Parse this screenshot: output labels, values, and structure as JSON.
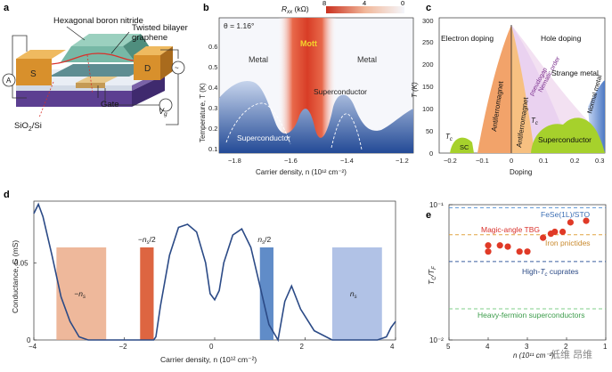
{
  "panels": {
    "a": {
      "letter": "a",
      "labels": {
        "hbn": "Hexagonal boron nitride",
        "tbg": "Twisted bilayer",
        "tbg2": "graphene",
        "source": "S",
        "drain": "D",
        "gate": "Gate",
        "substrate": "SiO",
        "substrate_sub": "2",
        "substrate_tail": "/Si",
        "ammeter": "A",
        "vg": "V",
        "vg_sub": "g"
      }
    },
    "b": {
      "letter": "b",
      "colorbar_label": "R",
      "colorbar_label_sub": "xx",
      "colorbar_unit": " (kΩ)",
      "colorbar_ticks": [
        "8",
        "4",
        "0"
      ],
      "theta": "θ = 1.16°",
      "region_mott": "Mott",
      "region_metal_left": "Metal",
      "region_metal_right": "Metal",
      "region_sc_left": "Superconductor",
      "region_sc_right": "Superconductor",
      "ylabel": "Temperature, T (K)",
      "xlabel": "Carrier density, n (10¹² cm⁻²)",
      "x_ticks": [
        "−1.8",
        "−1.6",
        "−1.4",
        "−1.2"
      ],
      "y_ticks": [
        "0.1",
        "0.2",
        "0.3",
        "0.4",
        "0.5",
        "0.6"
      ]
    },
    "c": {
      "letter": "c",
      "electron_doping": "Electron doping",
      "hole_doping": "Hole doping",
      "strange_metal": "Strange metal",
      "normal_metal": "Normal metal",
      "nematic": "Nematic order",
      "pseudogap": "pseudogap",
      "afm_left": "Antiferromagnet",
      "afm_right": "Antiferromagnet",
      "sc_small": "SC",
      "sc_big": "Superconductor",
      "tc": "T",
      "tc_sub": "c",
      "tc2": "T",
      "tc2_sub": "c",
      "ylabel": "T (K)",
      "xlabel": "Doping",
      "x_ticks": [
        "−0.2",
        "−0.1",
        "0",
        "0.1",
        "0.2",
        "0.3"
      ],
      "y_ticks": [
        "0",
        "50",
        "100",
        "150",
        "200",
        "250",
        "300"
      ]
    },
    "d": {
      "letter": "d",
      "ylabel": "Conductance, G (mS)",
      "xlabel": "Carrier density, n (10¹² cm⁻²)",
      "x_ticks": [
        "−4",
        "−2",
        "0",
        "2",
        "4"
      ],
      "y_ticks": [
        "0",
        "0.05"
      ],
      "band_neg_ns": "−n",
      "band_neg_ns_sub": "s",
      "band_neg_half": "−n",
      "band_neg_half_sub": "s",
      "band_neg_half_tail": "/2",
      "band_pos_half": "n",
      "band_pos_half_sub": "s",
      "band_pos_half_tail": "/2",
      "band_pos_ns": "n",
      "band_pos_ns_sub": "s"
    },
    "e": {
      "letter": "e",
      "ylabel": "T",
      "ylabel_sub1": "C",
      "ylabel_mid": "/T",
      "ylabel_sub2": "F",
      "xlabel": "n (10¹¹ cm⁻²)",
      "x_ticks": [
        "5",
        "4",
        "3",
        "2",
        "1"
      ],
      "y_ticks": [
        "10⁻¹",
        "10⁻²"
      ],
      "line_fese": "FeSe(1L)/STO",
      "line_tbg": "Magic-angle TBG",
      "line_iron": "Iron pnictides",
      "line_cuprate": "High-",
      "line_cuprate_tc": "T",
      "line_cuprate_tail": " cuprates",
      "line_heavy": "Heavy-fermion superconductors",
      "watermark": "低维 昂维"
    }
  },
  "colors": {
    "blue_curve": "#2b4a86",
    "red_points": "#e03a27",
    "orange_band": "#e8a07a",
    "red_band": "#d9542c",
    "blue_band": "#4f7fc2",
    "light_blue_band": "#97aede"
  },
  "chart_data": [
    {
      "type": "line",
      "title": "",
      "xlabel": "Carrier density, n (10¹² cm⁻²)",
      "ylabel": "Conductance, G (mS)",
      "xlim": [
        -4,
        4
      ],
      "ylim": [
        0,
        0.09
      ],
      "x": [
        -4.0,
        -3.9,
        -3.8,
        -3.6,
        -3.4,
        -3.2,
        -3.0,
        -2.8,
        -2.6,
        -2.4,
        -2.2,
        -2.0,
        -1.8,
        -1.6,
        -1.45,
        -1.4,
        -1.35,
        -1.3,
        -1.2,
        -1.0,
        -0.8,
        -0.6,
        -0.4,
        -0.2,
        -0.1,
        0.0,
        0.1,
        0.2,
        0.4,
        0.6,
        0.8,
        1.0,
        1.2,
        1.4,
        1.55,
        1.7,
        1.9,
        2.2,
        2.6,
        3.0,
        3.3,
        3.6,
        3.8,
        3.9,
        4.0
      ],
      "series": [
        {
          "name": "G",
          "values": [
            0.082,
            0.088,
            0.08,
            0.055,
            0.028,
            0.012,
            0.002,
            0.0,
            0.0,
            0.0,
            0.0,
            0.0,
            0.0,
            0.0,
            0.0,
            0.0,
            0.0,
            0.002,
            0.022,
            0.055,
            0.073,
            0.075,
            0.07,
            0.05,
            0.03,
            0.026,
            0.032,
            0.05,
            0.068,
            0.072,
            0.06,
            0.035,
            0.01,
            0.0,
            0.025,
            0.035,
            0.02,
            0.006,
            0.0,
            0.0,
            0.0,
            0.0,
            0.002,
            0.008,
            0.012
          ]
        }
      ],
      "bands": [
        {
          "label": "−n_s",
          "x_range": [
            -3.5,
            -2.4
          ],
          "height": 0.06
        },
        {
          "label": "−n_s/2",
          "x_range": [
            -1.65,
            -1.35
          ],
          "height": 0.06
        },
        {
          "label": "n_s/2",
          "x_range": [
            1.0,
            1.3
          ],
          "height": 0.06
        },
        {
          "label": "n_s",
          "x_range": [
            2.6,
            3.7
          ],
          "height": 0.06
        }
      ]
    },
    {
      "type": "scatter",
      "title": "",
      "xlabel": "n (10¹¹ cm⁻²)",
      "ylabel": "T_C/T_F",
      "xlim": [
        5,
        1
      ],
      "ylim": [
        0.01,
        0.1
      ],
      "yscale": "log",
      "series": [
        {
          "name": "Magic-angle TBG",
          "x": [
            4.0,
            4.0,
            3.7,
            3.5,
            3.2,
            3.0,
            2.6,
            2.4,
            2.3,
            2.1,
            1.9,
            1.5
          ],
          "values": [
            0.045,
            0.05,
            0.05,
            0.049,
            0.045,
            0.045,
            0.057,
            0.061,
            0.063,
            0.063,
            0.074,
            0.076
          ]
        }
      ],
      "reference_lines": [
        {
          "name": "FeSe(1L)/STO",
          "value": 0.095
        },
        {
          "name": "Iron pnictides",
          "value": 0.06
        },
        {
          "name": "High-Tc cuprates",
          "value": 0.038
        },
        {
          "name": "Heavy-fermion superconductors",
          "value": 0.017
        }
      ]
    }
  ]
}
